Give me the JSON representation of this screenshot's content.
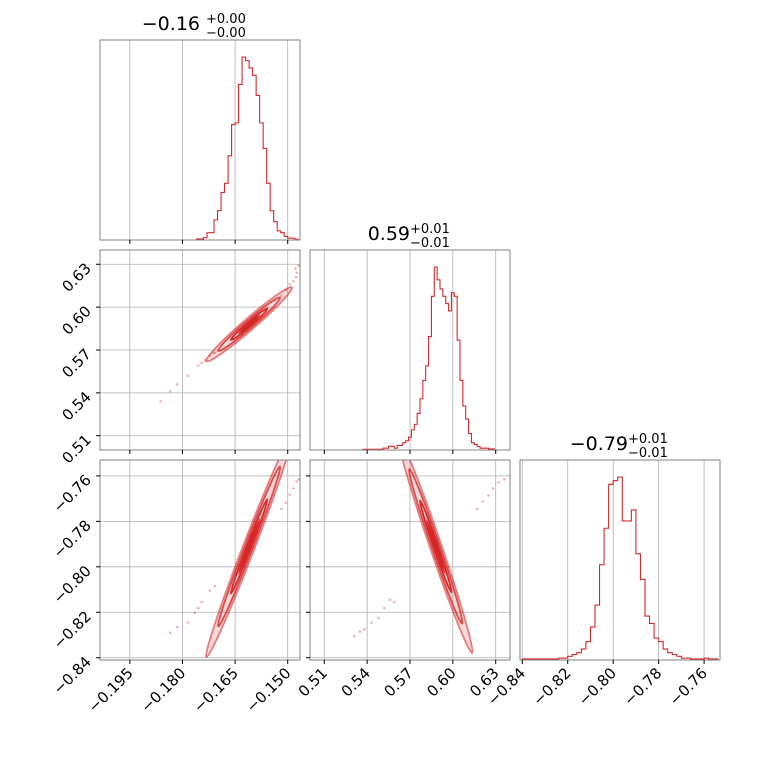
{
  "colors": {
    "accent": "#d62728",
    "grid": "#b0b0b0",
    "frame": "#808080"
  },
  "chart_data": {
    "type": "corner",
    "parameters": [
      {
        "title": {
          "main": "−0.16",
          "plus": "+0.00",
          "minus": "−0.00"
        },
        "range": [
          -0.2035,
          -0.1465
        ],
        "ticks": [
          -0.195,
          -0.18,
          -0.165,
          -0.15
        ],
        "tick_labels": [
          "−0.195",
          "−0.180",
          "−0.165",
          "−0.150"
        ],
        "histogram": {
          "edges": [
            -0.176,
            -0.175,
            -0.174,
            -0.173,
            -0.172,
            -0.171,
            -0.17,
            -0.169,
            -0.168,
            -0.167,
            -0.166,
            -0.165,
            -0.164,
            -0.163,
            -0.162,
            -0.161,
            -0.16,
            -0.159,
            -0.158,
            -0.157,
            -0.156,
            -0.155,
            -0.154,
            -0.153,
            -0.152,
            -0.151,
            -0.15,
            -0.149,
            -0.148,
            -0.147
          ],
          "counts": [
            0.006,
            0.006,
            0.013,
            0.04,
            0.04,
            0.11,
            0.16,
            0.26,
            0.31,
            0.46,
            0.63,
            0.64,
            0.85,
            1.0,
            0.98,
            0.94,
            0.9,
            0.79,
            0.64,
            0.5,
            0.31,
            0.16,
            0.1,
            0.05,
            0.04,
            0.02,
            0.01,
            0.01,
            0.004
          ]
        }
      },
      {
        "title": {
          "main": "0.59",
          "plus": "+0.01",
          "minus": "−0.01"
        },
        "range": [
          0.5,
          0.64
        ],
        "ticks": [
          0.51,
          0.54,
          0.57,
          0.6,
          0.63
        ],
        "tick_labels": [
          "0.51",
          "0.54",
          "0.57",
          "0.60",
          "0.63"
        ],
        "histogram": {
          "edges": [
            0.537,
            0.539,
            0.541,
            0.543,
            0.545,
            0.547,
            0.549,
            0.551,
            0.553,
            0.555,
            0.557,
            0.559,
            0.561,
            0.563,
            0.565,
            0.567,
            0.569,
            0.571,
            0.573,
            0.575,
            0.577,
            0.579,
            0.581,
            0.583,
            0.585,
            0.587,
            0.589,
            0.591,
            0.593,
            0.595,
            0.597,
            0.599,
            0.601,
            0.603,
            0.605,
            0.607,
            0.609,
            0.611,
            0.613,
            0.615,
            0.617,
            0.619,
            0.621,
            0.623,
            0.625,
            0.627,
            0.629
          ],
          "counts": [
            0.004,
            0.004,
            0.004,
            0.004,
            0.004,
            0.004,
            0.004,
            0.01,
            0.01,
            0.02,
            0.02,
            0.01,
            0.025,
            0.025,
            0.04,
            0.05,
            0.07,
            0.11,
            0.14,
            0.2,
            0.28,
            0.38,
            0.46,
            0.62,
            0.84,
            1.0,
            0.93,
            0.88,
            0.84,
            0.8,
            0.76,
            0.86,
            0.84,
            0.6,
            0.38,
            0.24,
            0.17,
            0.09,
            0.04,
            0.03,
            0.02,
            0.01,
            0.01,
            0.01,
            0.006,
            0.006
          ]
        }
      },
      {
        "title": {
          "main": "−0.79",
          "plus": "+0.01",
          "minus": "−0.01"
        },
        "range": [
          -0.841,
          -0.753
        ],
        "ticks": [
          -0.84,
          -0.82,
          -0.8,
          -0.78,
          -0.76
        ],
        "tick_labels": [
          "−0.84",
          "−0.82",
          "−0.80",
          "−0.78",
          "−0.76"
        ],
        "histogram": {
          "edges": [
            -0.84,
            -0.838,
            -0.836,
            -0.834,
            -0.832,
            -0.83,
            -0.828,
            -0.826,
            -0.824,
            -0.822,
            -0.82,
            -0.818,
            -0.816,
            -0.814,
            -0.812,
            -0.81,
            -0.808,
            -0.806,
            -0.804,
            -0.802,
            -0.8,
            -0.798,
            -0.796,
            -0.794,
            -0.792,
            -0.79,
            -0.788,
            -0.786,
            -0.784,
            -0.782,
            -0.78,
            -0.778,
            -0.776,
            -0.774,
            -0.772,
            -0.77,
            -0.768,
            -0.766,
            -0.764,
            -0.762,
            -0.76,
            -0.758,
            -0.756,
            -0.754
          ],
          "counts": [
            0.006,
            0.006,
            0.006,
            0.006,
            0.006,
            0.006,
            0.006,
            0.006,
            0.01,
            0.01,
            0.02,
            0.03,
            0.04,
            0.06,
            0.1,
            0.18,
            0.3,
            0.52,
            0.72,
            0.96,
            0.98,
            1.0,
            0.76,
            0.76,
            0.82,
            0.58,
            0.44,
            0.24,
            0.2,
            0.12,
            0.1,
            0.06,
            0.04,
            0.03,
            0.02,
            0.01,
            0.01,
            0.006,
            0.006,
            0.006,
            0.01,
            0.006,
            0.006
          ]
        }
      }
    ],
    "pairs": [
      {
        "x_param": 0,
        "y_param": 1,
        "slope": 2.12,
        "pivot": [
          -0.161,
          0.588
        ],
        "contours": [
          {
            "half_length": 0.0052,
            "half_width": 0.00035,
            "weight": 1.0
          },
          {
            "half_length": 0.0088,
            "half_width": 0.00058,
            "weight": 0.8
          },
          {
            "half_length": 0.0122,
            "half_width": 0.0008,
            "weight": 0.6
          }
        ],
        "scatter": [
          [
            -0.1745,
            0.561
          ],
          [
            -0.1722,
            0.566
          ],
          [
            -0.1755,
            0.559
          ],
          [
            -0.1708,
            0.568
          ],
          [
            -0.1785,
            0.552
          ],
          [
            -0.1815,
            0.546
          ],
          [
            -0.1835,
            0.541
          ],
          [
            -0.1862,
            0.534
          ],
          [
            -0.1735,
            0.563
          ],
          [
            -0.1712,
            0.568
          ],
          [
            -0.1518,
            0.608
          ],
          [
            -0.1505,
            0.612
          ],
          [
            -0.1494,
            0.616
          ],
          [
            -0.1484,
            0.618
          ],
          [
            -0.1476,
            0.621
          ],
          [
            -0.1474,
            0.624
          ],
          [
            -0.1478,
            0.627
          ],
          [
            -0.1469,
            0.629
          ]
        ]
      },
      {
        "x_param": 0,
        "y_param": 2,
        "slope": 4.0,
        "pivot": [
          -0.161,
          -0.791
        ],
        "contours": [
          {
            "half_length": 0.0052,
            "half_width": 0.0006,
            "weight": 1.0
          },
          {
            "half_length": 0.0088,
            "half_width": 0.001,
            "weight": 0.8
          },
          {
            "half_length": 0.0122,
            "half_width": 0.0014,
            "weight": 0.6
          }
        ],
        "scatter": [
          [
            -0.1745,
            -0.8155
          ],
          [
            -0.1722,
            -0.8105
          ],
          [
            -0.1755,
            -0.8182
          ],
          [
            -0.1708,
            -0.8085
          ],
          [
            -0.1785,
            -0.8245
          ],
          [
            -0.1815,
            -0.8265
          ],
          [
            -0.1835,
            -0.829
          ],
          [
            -0.1765,
            -0.8202
          ],
          [
            -0.1518,
            -0.7745
          ],
          [
            -0.1505,
            -0.7718
          ],
          [
            -0.1494,
            -0.7682
          ],
          [
            -0.1484,
            -0.7655
          ],
          [
            -0.1475,
            -0.7625
          ],
          [
            -0.1469,
            -0.7615
          ]
        ]
      },
      {
        "x_param": 1,
        "y_param": 2,
        "slope": -1.84,
        "pivot": [
          0.588,
          -0.791
        ],
        "contours": [
          {
            "half_length": 0.011,
            "half_width": 0.0007,
            "weight": 1.0
          },
          {
            "half_length": 0.0185,
            "half_width": 0.00115,
            "weight": 0.8
          },
          {
            "half_length": 0.0255,
            "half_width": 0.0016,
            "weight": 0.6
          }
        ],
        "scatter": [
          [
            0.559,
            -0.8155
          ],
          [
            0.556,
            -0.8145
          ],
          [
            0.552,
            -0.8182
          ],
          [
            0.548,
            -0.8225
          ],
          [
            0.543,
            -0.8245
          ],
          [
            0.538,
            -0.8275
          ],
          [
            0.535,
            -0.8285
          ],
          [
            0.531,
            -0.8305
          ],
          [
            0.617,
            -0.7745
          ],
          [
            0.621,
            -0.7712
          ],
          [
            0.625,
            -0.7685
          ],
          [
            0.628,
            -0.7655
          ],
          [
            0.632,
            -0.7628
          ],
          [
            0.636,
            -0.7615
          ]
        ]
      }
    ],
    "grid": true
  }
}
